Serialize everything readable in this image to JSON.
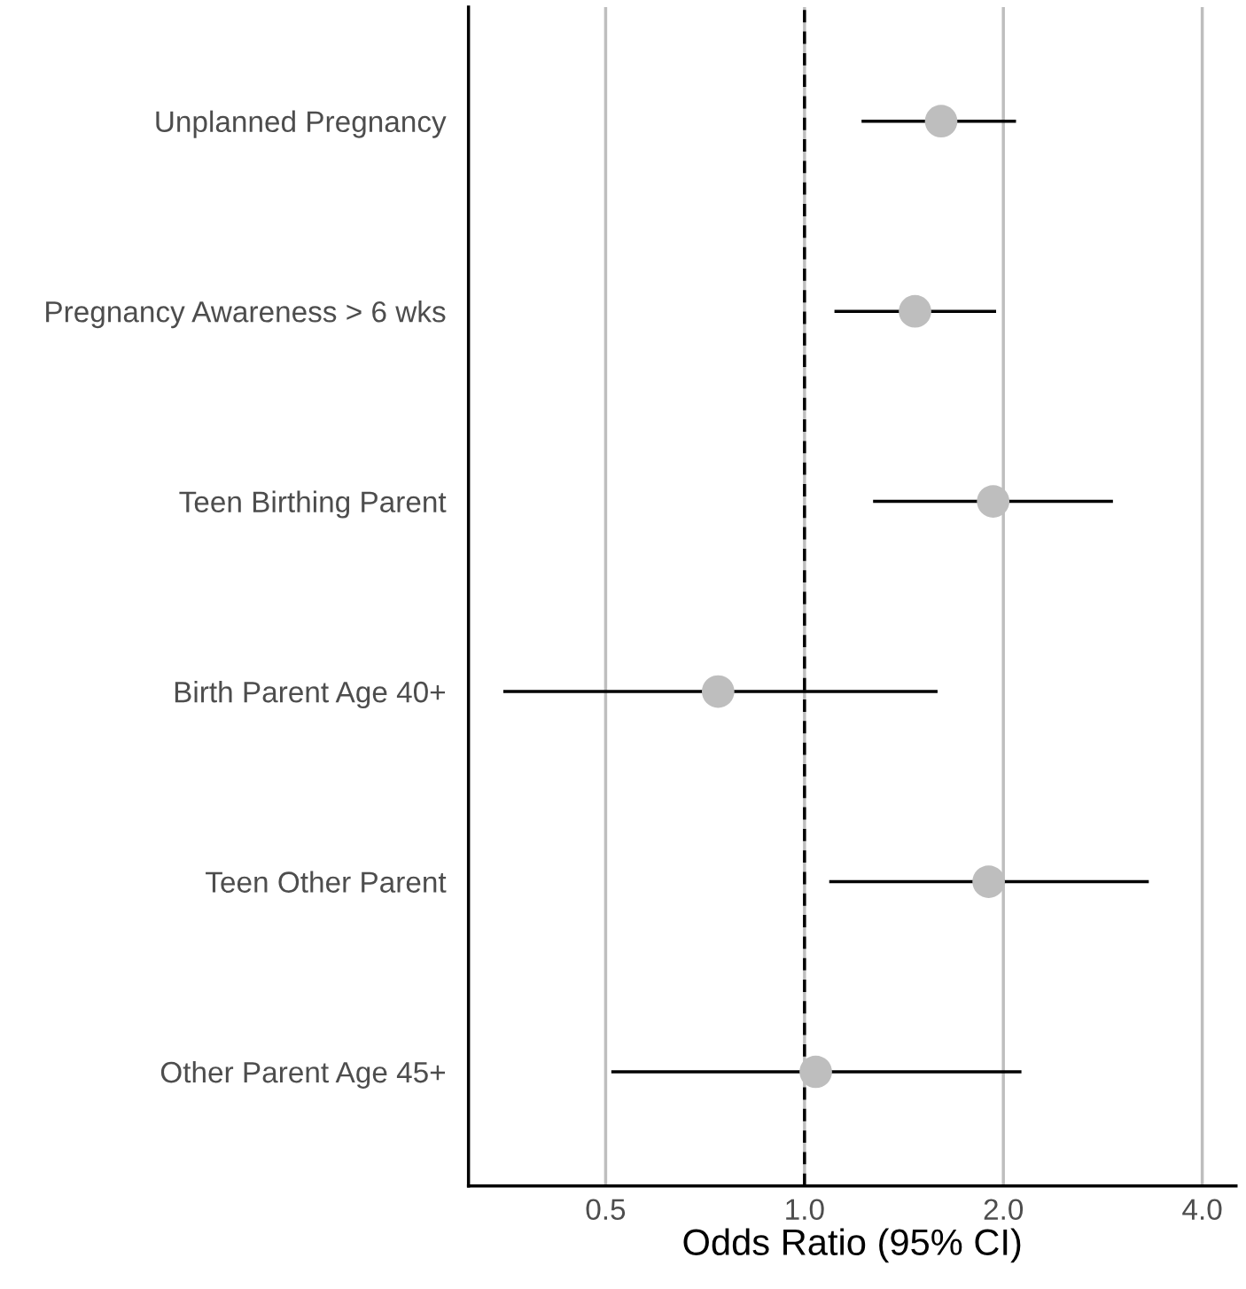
{
  "chart_data": {
    "type": "scatter",
    "orientation": "horizontal",
    "xlabel": "Odds Ratio (95% CI)",
    "categories": [
      "Unplanned Pregnancy",
      "Pregnancy Awareness > 6 wks",
      "Teen Birthing Parent",
      "Birth Parent Age 40+",
      "Teen Other Parent",
      "Other Parent Age 45+"
    ],
    "values": [
      1.61,
      1.47,
      1.93,
      0.74,
      1.9,
      1.04
    ],
    "errors": [
      [
        1.22,
        2.09
      ],
      [
        1.11,
        1.95
      ],
      [
        1.27,
        2.93
      ],
      [
        0.35,
        1.59
      ],
      [
        1.09,
        3.32
      ],
      [
        0.51,
        2.13
      ]
    ],
    "color": "#bebebe",
    "marker": "circle",
    "log": "x",
    "xlim": [
      0.31,
      4.5
    ],
    "xticks": [
      {
        "value": 0.5,
        "label": "0.5"
      },
      {
        "value": 1,
        "label": "1.0"
      },
      {
        "value": 2,
        "label": "2.0"
      },
      {
        "value": 4,
        "label": "4.0"
      }
    ],
    "grid": "x",
    "ref_lines": [
      {
        "axis": "x",
        "value": 1,
        "color": "#000000",
        "line_style": "dashed"
      }
    ]
  }
}
